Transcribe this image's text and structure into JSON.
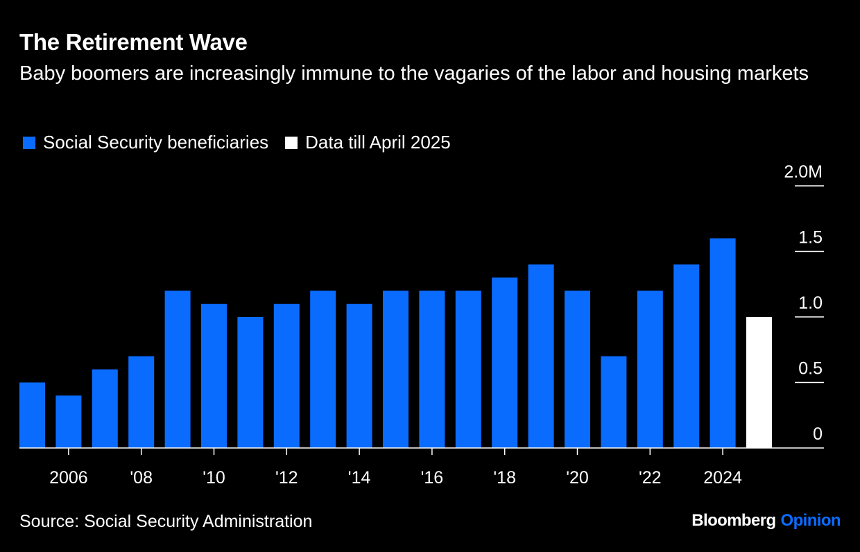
{
  "chart_data": {
    "type": "bar",
    "title": "The Retirement Wave",
    "subtitle": "Baby boomers are increasingly immune to the vagaries of the labor and housing markets",
    "legend": [
      {
        "label": "Social Security beneficiaries",
        "color": "#0a6cff"
      },
      {
        "label": "Data till April 2025",
        "color": "#ffffff"
      }
    ],
    "legend_placement": "top-left",
    "x": [
      2005,
      2006,
      2007,
      2008,
      2009,
      2010,
      2011,
      2012,
      2013,
      2014,
      2015,
      2016,
      2017,
      2018,
      2019,
      2020,
      2021,
      2022,
      2023,
      2024,
      2025
    ],
    "values": [
      0.5,
      0.4,
      0.6,
      0.7,
      1.2,
      1.1,
      1.0,
      1.1,
      1.2,
      1.1,
      1.2,
      1.2,
      1.2,
      1.3,
      1.4,
      1.2,
      0.7,
      1.2,
      1.4,
      1.6,
      1.0
    ],
    "partial_year": 2025,
    "x_ticks": [
      {
        "year": 2006,
        "label": "2006"
      },
      {
        "year": 2008,
        "label": "'08"
      },
      {
        "year": 2010,
        "label": "'10"
      },
      {
        "year": 2012,
        "label": "'12"
      },
      {
        "year": 2014,
        "label": "'14"
      },
      {
        "year": 2016,
        "label": "'16"
      },
      {
        "year": 2018,
        "label": "'18"
      },
      {
        "year": 2020,
        "label": "'20"
      },
      {
        "year": 2022,
        "label": "'22"
      },
      {
        "year": 2024,
        "label": "2024"
      }
    ],
    "y_ticks": [
      {
        "value": 0,
        "label": "0"
      },
      {
        "value": 0.5,
        "label": "0.5"
      },
      {
        "value": 1.0,
        "label": "1.0"
      },
      {
        "value": 1.5,
        "label": "1.5"
      },
      {
        "value": 2.0,
        "label": "2.0M"
      }
    ],
    "ylim": [
      0,
      2.0
    ],
    "y_axis_position": "right",
    "grid": false
  },
  "source": "Source: Social Security Administration",
  "branding": {
    "bloomberg": "Bloomberg",
    "opinion": "Opinion",
    "opinion_color": "#0a6cff"
  }
}
